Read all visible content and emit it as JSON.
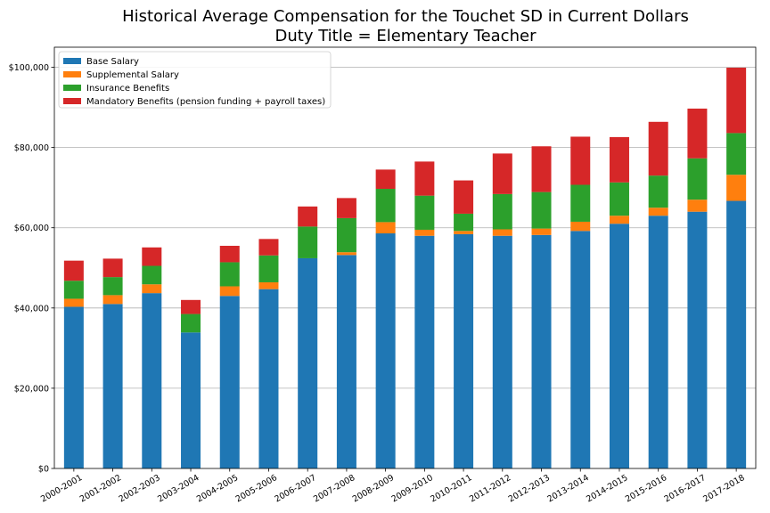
{
  "chart_data": {
    "type": "bar",
    "stacked": true,
    "title": "Historical Average Compensation for the Touchet SD in Current Dollars",
    "subtitle": "Duty Title = Elementary Teacher",
    "xlabel": "",
    "ylabel": "",
    "ylim": [
      0,
      105000
    ],
    "yticks": [
      0,
      20000,
      40000,
      60000,
      80000,
      100000
    ],
    "ytick_labels": [
      "$0",
      "$20,000",
      "$40,000",
      "$60,000",
      "$80,000",
      "$100,000"
    ],
    "grid": "horizontal",
    "legend_position": "top-left",
    "categories": [
      "2000-2001",
      "2001-2002",
      "2002-2003",
      "2003-2004",
      "2004-2005",
      "2005-2006",
      "2006-2007",
      "2007-2008",
      "2008-2009",
      "2009-2010",
      "2010-2011",
      "2011-2012",
      "2012-2013",
      "2013-2014",
      "2014-2015",
      "2015-2016",
      "2016-2017",
      "2017-2018"
    ],
    "series": [
      {
        "name": "Base Salary",
        "color": "#1f77b4",
        "values": [
          40300,
          41000,
          43700,
          33900,
          43000,
          44700,
          52400,
          53200,
          58600,
          58000,
          58400,
          58000,
          58200,
          59200,
          61000,
          63000,
          64000,
          66700
        ]
      },
      {
        "name": "Supplemental Salary",
        "color": "#ff7f0e",
        "values": [
          2000,
          2200,
          2200,
          0,
          2400,
          1700,
          0,
          700,
          2800,
          1500,
          800,
          1600,
          1600,
          2300,
          2000,
          2000,
          3000,
          6500
        ]
      },
      {
        "name": "Insurance Benefits",
        "color": "#2ca02c",
        "values": [
          4500,
          4500,
          4600,
          4600,
          6000,
          6700,
          7900,
          8500,
          8300,
          8500,
          4300,
          8800,
          9100,
          9200,
          8300,
          8000,
          10300,
          10400
        ]
      },
      {
        "name": "Mandatory Benefits (pension funding + payroll taxes)",
        "color": "#d62728",
        "values": [
          5000,
          4600,
          4600,
          3500,
          4100,
          4100,
          5000,
          5000,
          4800,
          8500,
          8300,
          10100,
          11400,
          12000,
          11300,
          13400,
          12400,
          16300
        ]
      }
    ]
  }
}
